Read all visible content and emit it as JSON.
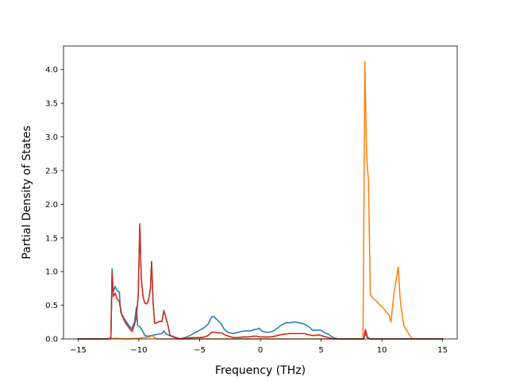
{
  "chart_data": {
    "type": "line",
    "title": "",
    "xlabel": "Frequency (THz)",
    "ylabel": "Partial Density of States",
    "xlim": [
      -16.2,
      16.2
    ],
    "ylim": [
      0,
      4.35
    ],
    "xticks": [
      -15,
      -10,
      -5,
      0,
      5,
      10,
      15
    ],
    "yticks": [
      0.0,
      0.5,
      1.0,
      1.5,
      2.0,
      2.5,
      3.0,
      3.5,
      4.0
    ],
    "xtick_labels": [
      "−15",
      "−10",
      "−5",
      "0",
      "5",
      "10",
      "15"
    ],
    "ytick_labels": [
      "0.0",
      "0.5",
      "1.0",
      "1.5",
      "2.0",
      "2.5",
      "3.0",
      "3.5",
      "4.0"
    ],
    "grid": false,
    "series": [
      {
        "color": "#1f77b4",
        "points": [
          [
            -15.0,
            0
          ],
          [
            -12.5,
            0
          ],
          [
            -12.3,
            0.02
          ],
          [
            -12.2,
            1.04
          ],
          [
            -12.1,
            0.7
          ],
          [
            -11.95,
            0.78
          ],
          [
            -11.8,
            0.72
          ],
          [
            -11.6,
            0.7
          ],
          [
            -11.5,
            0.4
          ],
          [
            -11.2,
            0.3
          ],
          [
            -10.9,
            0.22
          ],
          [
            -10.6,
            0.15
          ],
          [
            -10.35,
            0.25
          ],
          [
            -10.2,
            0.47
          ],
          [
            -10.1,
            0.2
          ],
          [
            -9.9,
            0.18
          ],
          [
            -9.7,
            0.12
          ],
          [
            -9.5,
            0.05
          ],
          [
            -9.3,
            0.04
          ],
          [
            -9.0,
            0.05
          ],
          [
            -8.7,
            0.06
          ],
          [
            -8.4,
            0.07
          ],
          [
            -8.1,
            0.08
          ],
          [
            -7.95,
            0.12
          ],
          [
            -7.8,
            0.08
          ],
          [
            -7.5,
            0.05
          ],
          [
            -7.2,
            0.04
          ],
          [
            -6.9,
            0.02
          ],
          [
            -6.6,
            0.0
          ],
          [
            -6.2,
            0.02
          ],
          [
            -5.8,
            0.05
          ],
          [
            -5.4,
            0.09
          ],
          [
            -5.0,
            0.13
          ],
          [
            -4.6,
            0.17
          ],
          [
            -4.3,
            0.22
          ],
          [
            -4.0,
            0.33
          ],
          [
            -3.8,
            0.33
          ],
          [
            -3.6,
            0.29
          ],
          [
            -3.4,
            0.26
          ],
          [
            -3.2,
            0.22
          ],
          [
            -3.0,
            0.15
          ],
          [
            -2.7,
            0.1
          ],
          [
            -2.3,
            0.08
          ],
          [
            -2.0,
            0.09
          ],
          [
            -1.6,
            0.11
          ],
          [
            -1.2,
            0.12
          ],
          [
            -0.8,
            0.12
          ],
          [
            -0.5,
            0.14
          ],
          [
            -0.3,
            0.14
          ],
          [
            -0.1,
            0.16
          ],
          [
            0.1,
            0.12
          ],
          [
            0.4,
            0.1
          ],
          [
            0.8,
            0.1
          ],
          [
            1.1,
            0.12
          ],
          [
            1.4,
            0.16
          ],
          [
            1.7,
            0.2
          ],
          [
            1.9,
            0.22
          ],
          [
            2.1,
            0.24
          ],
          [
            2.4,
            0.24
          ],
          [
            2.8,
            0.25
          ],
          [
            3.2,
            0.24
          ],
          [
            3.6,
            0.22
          ],
          [
            4.0,
            0.18
          ],
          [
            4.3,
            0.13
          ],
          [
            4.7,
            0.13
          ],
          [
            5.0,
            0.13
          ],
          [
            5.3,
            0.09
          ],
          [
            5.6,
            0.07
          ],
          [
            5.9,
            0.03
          ],
          [
            6.2,
            0.01
          ],
          [
            6.5,
            0.0
          ],
          [
            8.5,
            0.0
          ],
          [
            8.65,
            0.08
          ],
          [
            8.8,
            0.02
          ],
          [
            9.0,
            0.0
          ],
          [
            15.0,
            0.0
          ]
        ]
      },
      {
        "color": "#ff7f0e",
        "points": [
          [
            -15.0,
            0
          ],
          [
            -12.5,
            0
          ],
          [
            -12.0,
            0.01
          ],
          [
            -11.0,
            0.0
          ],
          [
            -10.0,
            0.01
          ],
          [
            -9.5,
            0.02
          ],
          [
            -9.1,
            0.03
          ],
          [
            -8.9,
            0.05
          ],
          [
            -8.7,
            0.02
          ],
          [
            -8.5,
            0.0
          ],
          [
            8.45,
            0.0
          ],
          [
            8.6,
            4.12
          ],
          [
            8.75,
            2.7
          ],
          [
            8.9,
            2.35
          ],
          [
            9.05,
            0.66
          ],
          [
            9.3,
            0.6
          ],
          [
            9.6,
            0.55
          ],
          [
            10.0,
            0.48
          ],
          [
            10.3,
            0.42
          ],
          [
            10.6,
            0.35
          ],
          [
            10.75,
            0.25
          ],
          [
            11.0,
            0.68
          ],
          [
            11.35,
            1.07
          ],
          [
            11.5,
            0.6
          ],
          [
            11.8,
            0.2
          ],
          [
            12.2,
            0.08
          ],
          [
            12.5,
            0.0
          ],
          [
            15.0,
            0.0
          ]
        ]
      },
      {
        "color": "#2ca02c",
        "points": [
          [
            -15.0,
            0
          ],
          [
            -12.5,
            0
          ],
          [
            -12.3,
            0.02
          ],
          [
            -12.2,
            0.98
          ],
          [
            -12.1,
            0.63
          ],
          [
            -11.95,
            0.68
          ],
          [
            -11.8,
            0.6
          ],
          [
            -11.6,
            0.55
          ],
          [
            -11.4,
            0.35
          ],
          [
            -11.1,
            0.24
          ],
          [
            -10.8,
            0.16
          ],
          [
            -10.55,
            0.11
          ],
          [
            -10.35,
            0.22
          ],
          [
            -10.2,
            0.32
          ],
          [
            -10.05,
            0.65
          ],
          [
            -9.92,
            1.7
          ],
          [
            -9.8,
            0.9
          ],
          [
            -9.65,
            0.62
          ],
          [
            -9.5,
            0.53
          ],
          [
            -9.35,
            0.52
          ],
          [
            -9.2,
            0.58
          ],
          [
            -9.05,
            0.75
          ],
          [
            -8.95,
            1.15
          ],
          [
            -8.82,
            0.52
          ],
          [
            -8.7,
            0.23
          ],
          [
            -8.5,
            0.24
          ],
          [
            -8.3,
            0.26
          ],
          [
            -8.1,
            0.26
          ],
          [
            -7.95,
            0.42
          ],
          [
            -7.8,
            0.33
          ],
          [
            -7.6,
            0.2
          ],
          [
            -7.45,
            0.06
          ],
          [
            -7.2,
            0.03
          ],
          [
            -6.8,
            0.01
          ],
          [
            -6.4,
            0.0
          ],
          [
            -6.0,
            0.01
          ],
          [
            -5.5,
            0.02
          ],
          [
            -5.0,
            0.02
          ],
          [
            -4.6,
            0.03
          ],
          [
            -4.3,
            0.05
          ],
          [
            -4.0,
            0.1
          ],
          [
            -3.8,
            0.1
          ],
          [
            -3.5,
            0.09
          ],
          [
            -3.2,
            0.09
          ],
          [
            -2.9,
            0.06
          ],
          [
            -2.6,
            0.04
          ],
          [
            -2.2,
            0.02
          ],
          [
            -1.8,
            0.02
          ],
          [
            -1.4,
            0.03
          ],
          [
            -1.0,
            0.03
          ],
          [
            -0.6,
            0.04
          ],
          [
            -0.3,
            0.04
          ],
          [
            0.0,
            0.03
          ],
          [
            0.4,
            0.03
          ],
          [
            0.8,
            0.03
          ],
          [
            1.2,
            0.04
          ],
          [
            1.6,
            0.06
          ],
          [
            2.0,
            0.07
          ],
          [
            2.4,
            0.08
          ],
          [
            2.8,
            0.08
          ],
          [
            3.2,
            0.08
          ],
          [
            3.6,
            0.08
          ],
          [
            4.0,
            0.06
          ],
          [
            4.4,
            0.05
          ],
          [
            4.8,
            0.06
          ],
          [
            5.2,
            0.04
          ],
          [
            5.6,
            0.02
          ],
          [
            6.0,
            0.0
          ],
          [
            8.5,
            0.0
          ],
          [
            8.65,
            0.12
          ],
          [
            8.8,
            0.03
          ],
          [
            9.0,
            0.0
          ],
          [
            15.0,
            0.0
          ]
        ]
      },
      {
        "color": "#d62728",
        "points": [
          [
            -15.0,
            0
          ],
          [
            -12.5,
            0
          ],
          [
            -12.3,
            0.02
          ],
          [
            -12.2,
            0.98
          ],
          [
            -12.1,
            0.63
          ],
          [
            -11.95,
            0.68
          ],
          [
            -11.8,
            0.6
          ],
          [
            -11.6,
            0.55
          ],
          [
            -11.4,
            0.35
          ],
          [
            -11.1,
            0.24
          ],
          [
            -10.8,
            0.16
          ],
          [
            -10.55,
            0.11
          ],
          [
            -10.35,
            0.22
          ],
          [
            -10.2,
            0.32
          ],
          [
            -10.05,
            0.65
          ],
          [
            -9.92,
            1.71
          ],
          [
            -9.8,
            0.9
          ],
          [
            -9.65,
            0.62
          ],
          [
            -9.5,
            0.53
          ],
          [
            -9.35,
            0.52
          ],
          [
            -9.2,
            0.58
          ],
          [
            -9.05,
            0.75
          ],
          [
            -8.95,
            1.15
          ],
          [
            -8.82,
            0.52
          ],
          [
            -8.7,
            0.23
          ],
          [
            -8.5,
            0.24
          ],
          [
            -8.3,
            0.26
          ],
          [
            -8.1,
            0.26
          ],
          [
            -7.95,
            0.42
          ],
          [
            -7.8,
            0.33
          ],
          [
            -7.6,
            0.2
          ],
          [
            -7.45,
            0.06
          ],
          [
            -7.2,
            0.03
          ],
          [
            -6.8,
            0.01
          ],
          [
            -6.4,
            0.0
          ],
          [
            -6.0,
            0.01
          ],
          [
            -5.5,
            0.02
          ],
          [
            -5.0,
            0.02
          ],
          [
            -4.6,
            0.03
          ],
          [
            -4.3,
            0.05
          ],
          [
            -4.0,
            0.1
          ],
          [
            -3.8,
            0.1
          ],
          [
            -3.5,
            0.09
          ],
          [
            -3.2,
            0.09
          ],
          [
            -2.9,
            0.06
          ],
          [
            -2.6,
            0.04
          ],
          [
            -2.2,
            0.02
          ],
          [
            -1.8,
            0.02
          ],
          [
            -1.4,
            0.03
          ],
          [
            -1.0,
            0.03
          ],
          [
            -0.6,
            0.04
          ],
          [
            -0.3,
            0.04
          ],
          [
            0.0,
            0.03
          ],
          [
            0.4,
            0.03
          ],
          [
            0.8,
            0.03
          ],
          [
            1.2,
            0.04
          ],
          [
            1.6,
            0.06
          ],
          [
            2.0,
            0.07
          ],
          [
            2.4,
            0.08
          ],
          [
            2.8,
            0.08
          ],
          [
            3.2,
            0.08
          ],
          [
            3.6,
            0.08
          ],
          [
            4.0,
            0.06
          ],
          [
            4.4,
            0.05
          ],
          [
            4.8,
            0.06
          ],
          [
            5.2,
            0.04
          ],
          [
            5.6,
            0.02
          ],
          [
            6.0,
            0.0
          ],
          [
            8.5,
            0.0
          ],
          [
            8.65,
            0.14
          ],
          [
            8.8,
            0.03
          ],
          [
            9.0,
            0.0
          ],
          [
            15.0,
            0.0
          ]
        ]
      }
    ]
  }
}
